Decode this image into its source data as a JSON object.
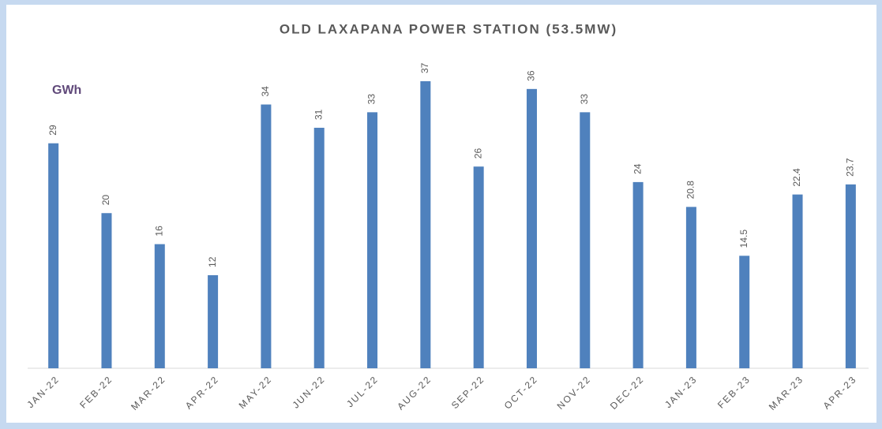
{
  "chart_data": {
    "type": "bar",
    "title": "OLD LAXAPANA POWER STATION (53.5MW)",
    "y_label": "GWh",
    "categories": [
      "JAN-22",
      "FEB-22",
      "MAR-22",
      "APR-22",
      "MAY-22",
      "JUN-22",
      "JUL-22",
      "AUG-22",
      "SEP-22",
      "OCT-22",
      "NOV-22",
      "DEC-22",
      "JAN-23",
      "FEB-23",
      "MAR-23",
      "APR-23"
    ],
    "values": [
      29,
      20,
      16,
      12,
      34,
      31,
      33,
      37,
      26,
      36,
      33,
      24,
      20.8,
      14.5,
      22.4,
      23.7
    ],
    "color": "#4f81bd"
  }
}
